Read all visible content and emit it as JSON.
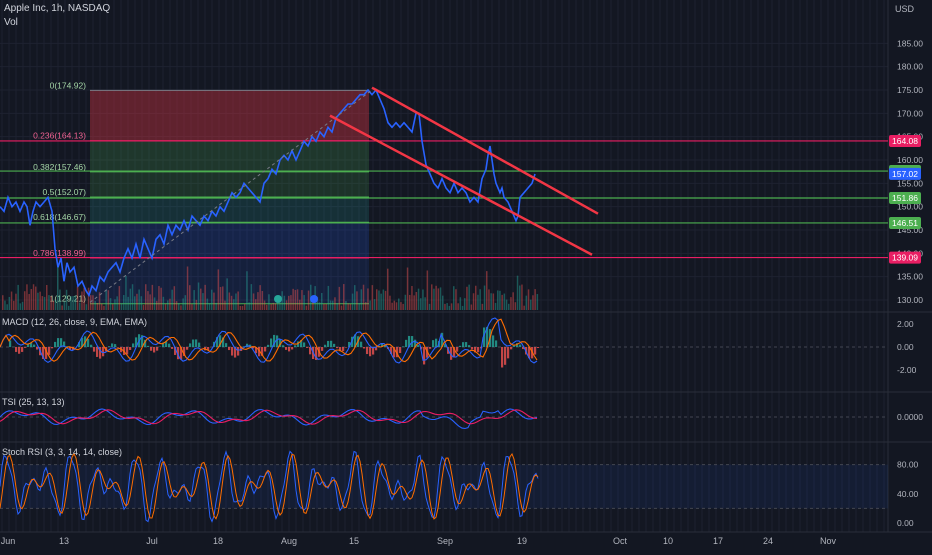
{
  "header": {
    "title": "Apple Inc, 1h, NASDAQ",
    "vol_label": "Vol",
    "currency": "USD"
  },
  "colors": {
    "bg": "#131722",
    "price": "#2962ff",
    "fib_red": "#e91e63",
    "fib_green": "#4caf50",
    "channel": "#f23645",
    "macd": "#2962ff",
    "signal": "#ff6d00",
    "hist_up": "#26a69a",
    "hist_down": "#ef5350",
    "stoch_k": "#2962ff",
    "stoch_d": "#ff6d00"
  },
  "panes": {
    "macd_label": "MACD (12, 26, close, 9, EMA, EMA)",
    "tsi_label": "TSI (25, 13, 13)",
    "stoch_label": "Stoch RSI (3, 3, 14, 14, close)"
  },
  "chart_data": [
    {
      "type": "line",
      "name": "price",
      "ylim": [
        128,
        188
      ],
      "y_ticks": [
        "185.00",
        "180.00",
        "175.00",
        "170.00",
        "165.00",
        "160.00",
        "155.00",
        "150.00",
        "145.00",
        "140.00",
        "135.00",
        "130.00"
      ],
      "x_labels": [
        "Jun",
        "13",
        "Jul",
        "18",
        "Aug",
        "15",
        "Sep",
        "19",
        "Oct",
        "10",
        "17",
        "24",
        "Nov"
      ],
      "price_path": [
        [
          0,
          150
        ],
        [
          4,
          149
        ],
        [
          8,
          152
        ],
        [
          12,
          150
        ],
        [
          16,
          151
        ],
        [
          20,
          149
        ],
        [
          24,
          151
        ],
        [
          27,
          150
        ],
        [
          30,
          146
        ],
        [
          33,
          149
        ],
        [
          36,
          151
        ],
        [
          40,
          150
        ],
        [
          44,
          151
        ],
        [
          48,
          152
        ],
        [
          52,
          149
        ],
        [
          55,
          141
        ],
        [
          58,
          137
        ],
        [
          61,
          139
        ],
        [
          64,
          134
        ],
        [
          67,
          138
        ],
        [
          70,
          136
        ],
        [
          74,
          137
        ],
        [
          78,
          133
        ],
        [
          82,
          134
        ],
        [
          86,
          132
        ],
        [
          89,
          131
        ],
        [
          92,
          133
        ],
        [
          96,
          132
        ],
        [
          100,
          135
        ],
        [
          104,
          134
        ],
        [
          108,
          136
        ],
        [
          112,
          137
        ],
        [
          116,
          138
        ],
        [
          120,
          136
        ],
        [
          124,
          139
        ],
        [
          128,
          141
        ],
        [
          132,
          139
        ],
        [
          136,
          142
        ],
        [
          140,
          139
        ],
        [
          144,
          143
        ],
        [
          148,
          141
        ],
        [
          152,
          139
        ],
        [
          156,
          143
        ],
        [
          160,
          144
        ],
        [
          164,
          142
        ],
        [
          168,
          146
        ],
        [
          172,
          144
        ],
        [
          176,
          146
        ],
        [
          180,
          145
        ],
        [
          184,
          147
        ],
        [
          188,
          145
        ],
        [
          192,
          148
        ],
        [
          196,
          147
        ],
        [
          200,
          146
        ],
        [
          204,
          148
        ],
        [
          208,
          147
        ],
        [
          212,
          149
        ],
        [
          216,
          148
        ],
        [
          220,
          150
        ],
        [
          224,
          149
        ],
        [
          228,
          151
        ],
        [
          232,
          153
        ],
        [
          236,
          152
        ],
        [
          240,
          153
        ],
        [
          244,
          155
        ],
        [
          248,
          154
        ],
        [
          252,
          153
        ],
        [
          256,
          152
        ],
        [
          260,
          151
        ],
        [
          264,
          155
        ],
        [
          268,
          156
        ],
        [
          272,
          158
        ],
        [
          276,
          157
        ],
        [
          280,
          160
        ],
        [
          284,
          161
        ],
        [
          288,
          160
        ],
        [
          292,
          162
        ],
        [
          296,
          160
        ],
        [
          300,
          162
        ],
        [
          304,
          164
        ],
        [
          308,
          163
        ],
        [
          312,
          165
        ],
        [
          316,
          164
        ],
        [
          320,
          166
        ],
        [
          324,
          165
        ],
        [
          328,
          167
        ],
        [
          332,
          166
        ],
        [
          336,
          169
        ],
        [
          340,
          170
        ],
        [
          344,
          171
        ],
        [
          348,
          172
        ],
        [
          352,
          172
        ],
        [
          356,
          173
        ],
        [
          360,
          174
        ],
        [
          364,
          174
        ],
        [
          368,
          175
        ],
        [
          372,
          174
        ],
        [
          376,
          175
        ],
        [
          380,
          173
        ],
        [
          384,
          171
        ],
        [
          388,
          168
        ],
        [
          392,
          167
        ],
        [
          396,
          168
        ],
        [
          400,
          167
        ],
        [
          404,
          168
        ],
        [
          408,
          167
        ],
        [
          412,
          166
        ],
        [
          416,
          170
        ],
        [
          419,
          170
        ],
        [
          422,
          164
        ],
        [
          426,
          159
        ],
        [
          430,
          157
        ],
        [
          434,
          155
        ],
        [
          438,
          154
        ],
        [
          442,
          156
        ],
        [
          446,
          154
        ],
        [
          450,
          153
        ],
        [
          454,
          155
        ],
        [
          458,
          153
        ],
        [
          462,
          154
        ],
        [
          466,
          153
        ],
        [
          470,
          151
        ],
        [
          474,
          152
        ],
        [
          478,
          151
        ],
        [
          482,
          156
        ],
        [
          486,
          158
        ],
        [
          488,
          161
        ],
        [
          490,
          163
        ],
        [
          492,
          160
        ],
        [
          494,
          157
        ],
        [
          496,
          155
        ],
        [
          498,
          154
        ],
        [
          500,
          153
        ],
        [
          502,
          154
        ],
        [
          504,
          152
        ],
        [
          508,
          151
        ],
        [
          512,
          149
        ],
        [
          516,
          147
        ],
        [
          518,
          148
        ],
        [
          520,
          152
        ],
        [
          524,
          153
        ],
        [
          528,
          154
        ],
        [
          532,
          155
        ],
        [
          535,
          157
        ]
      ],
      "fib_levels": [
        {
          "label": "0(174.92)",
          "price": 174.92
        },
        {
          "label": "0.236(164.13)",
          "price": 164.13
        },
        {
          "label": "0.382(157.46)",
          "price": 157.46
        },
        {
          "label": "0.5(152.07)",
          "price": 152.07
        },
        {
          "label": "0.618(146.67)",
          "price": 146.67
        },
        {
          "label": "0.786(138.99)",
          "price": 138.99
        },
        {
          "label": "1(129.21)",
          "price": 129.21
        }
      ],
      "price_tags": [
        {
          "label": "164.08",
          "price": 164.08,
          "color": "#e91e63"
        },
        {
          "label": "157.63",
          "price": 157.63,
          "color": "#4caf50"
        },
        {
          "label": "157.02",
          "price": 157.02,
          "color": "#2962ff"
        },
        {
          "label": "151.86",
          "price": 151.86,
          "color": "#4caf50"
        },
        {
          "label": "146.51",
          "price": 146.51,
          "color": "#4caf50"
        },
        {
          "label": "139.09",
          "price": 139.09,
          "color": "#e91e63"
        }
      ]
    },
    {
      "type": "line",
      "name": "MACD (12, 26, close, 9, EMA, EMA)",
      "ylim": [
        -3,
        3
      ],
      "y_ticks": [
        "2.00",
        "0.00",
        "-2.00"
      ]
    },
    {
      "type": "line",
      "name": "TSI (25, 13, 13)",
      "ylim": [
        -0.5,
        0.5
      ],
      "y_ticks": [
        "0.0000"
      ]
    },
    {
      "type": "line",
      "name": "Stoch RSI (3, 3, 14, 14, close)",
      "ylim": [
        0,
        100
      ],
      "y_ticks": [
        "80.00",
        "40.00",
        "0.00"
      ],
      "bands": [
        80,
        20
      ]
    }
  ]
}
